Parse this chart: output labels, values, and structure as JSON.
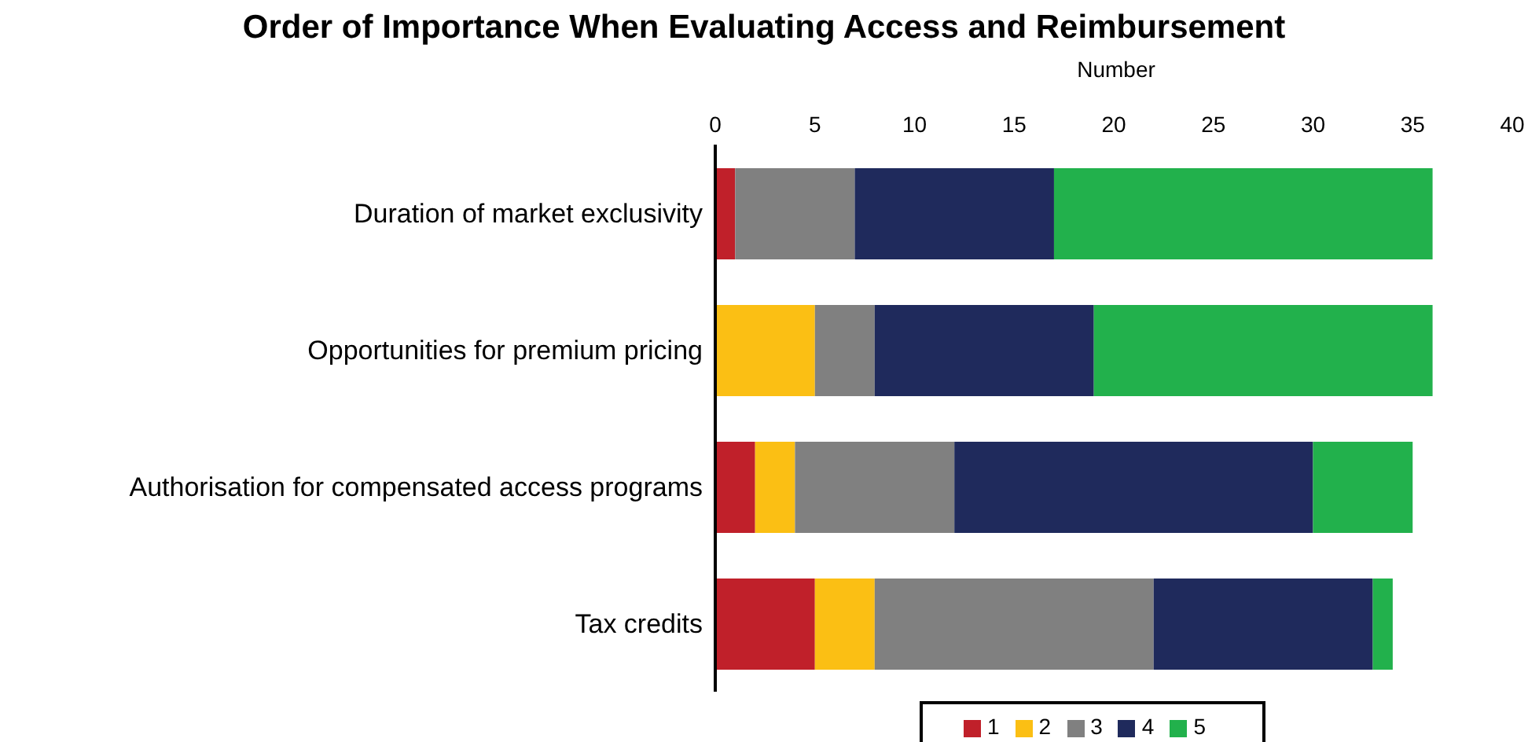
{
  "chart_data": {
    "type": "bar",
    "orientation": "horizontal",
    "stacked": true,
    "title": "Order of Importance When Evaluating Access and Reimbursement",
    "xlabel": "Number",
    "categories": [
      "Duration of market exclusivity",
      "Opportunities for premium pricing",
      "Authorisation for compensated access programs",
      "Tax credits"
    ],
    "series": [
      {
        "name": "1",
        "color": "#c0202a",
        "values": [
          1,
          0,
          2,
          5
        ]
      },
      {
        "name": "2",
        "color": "#fbbf14",
        "values": [
          0,
          5,
          2,
          3
        ]
      },
      {
        "name": "3",
        "color": "#808080",
        "values": [
          6,
          3,
          8,
          14
        ]
      },
      {
        "name": "4",
        "color": "#1f2a5c",
        "values": [
          10,
          11,
          18,
          11
        ]
      },
      {
        "name": "5",
        "color": "#22b14c",
        "values": [
          19,
          17,
          5,
          1
        ]
      }
    ],
    "xlim": [
      0,
      40
    ],
    "xticks": [
      0,
      5,
      10,
      15,
      20,
      25,
      30,
      35,
      40
    ],
    "grid": false,
    "legend": "bottom"
  }
}
